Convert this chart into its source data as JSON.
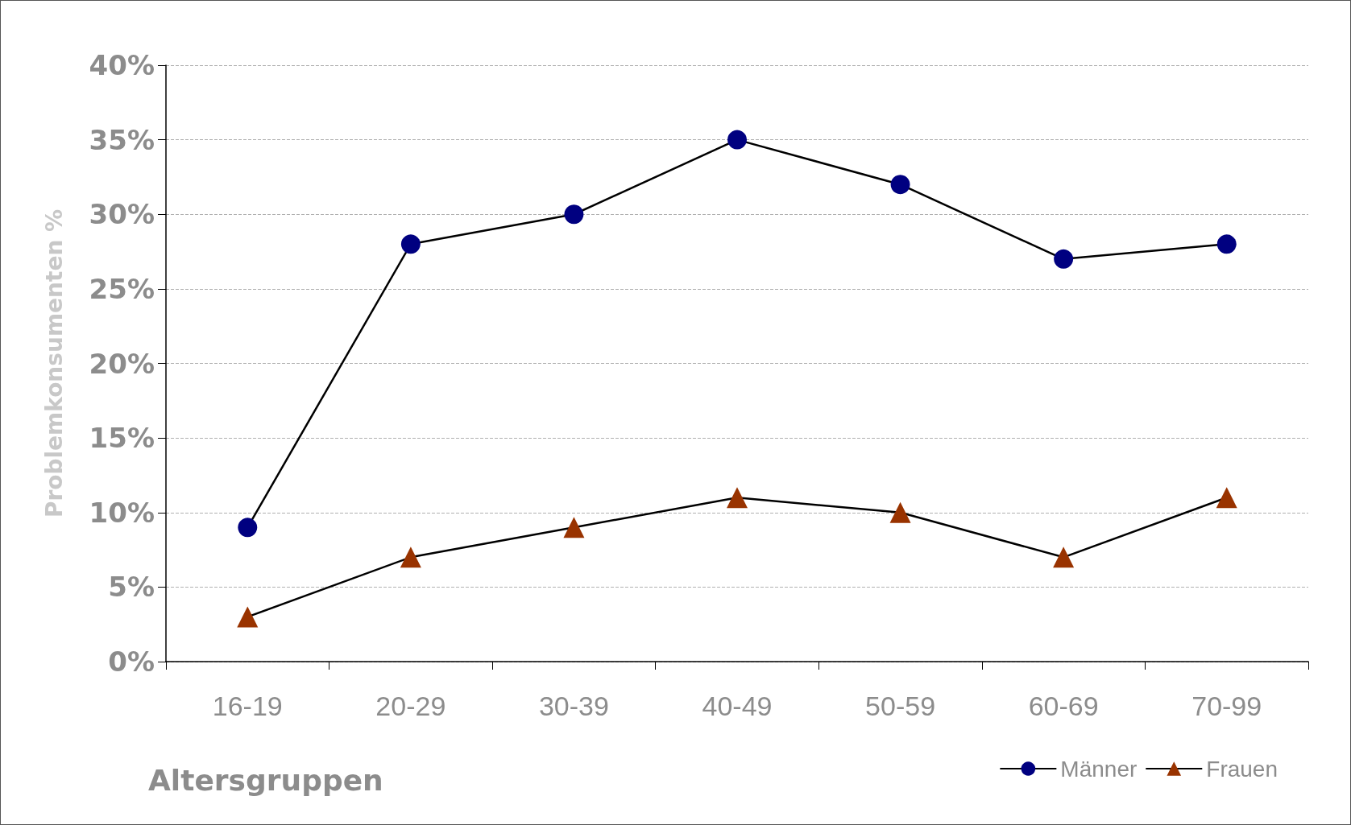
{
  "chart_data": {
    "type": "line",
    "xlabel": "Altersgruppen",
    "ylabel": "Problemkonsumenten %",
    "categories": [
      "16-19",
      "20-29",
      "30-39",
      "40-49",
      "50-59",
      "60-69",
      "70-99"
    ],
    "series": [
      {
        "name": "Männer",
        "color": "#000080",
        "marker": "circle",
        "values": [
          9,
          28,
          30,
          35,
          32,
          27,
          28
        ]
      },
      {
        "name": "Frauen",
        "color": "#993300",
        "marker": "triangle",
        "values": [
          3,
          7,
          9,
          11,
          10,
          7,
          11
        ]
      }
    ],
    "ylim": [
      0,
      40
    ],
    "yticks": [
      {
        "value": 0,
        "label": "0%"
      },
      {
        "value": 5,
        "label": "5%"
      },
      {
        "value": 10,
        "label": "10%"
      },
      {
        "value": 15,
        "label": "15%"
      },
      {
        "value": 20,
        "label": "20%"
      },
      {
        "value": 25,
        "label": "25%"
      },
      {
        "value": 30,
        "label": "30%"
      },
      {
        "value": 35,
        "label": "35%"
      },
      {
        "value": 40,
        "label": "40%"
      }
    ],
    "grid": "y",
    "legend": "bottom right",
    "line_style": "solid"
  }
}
